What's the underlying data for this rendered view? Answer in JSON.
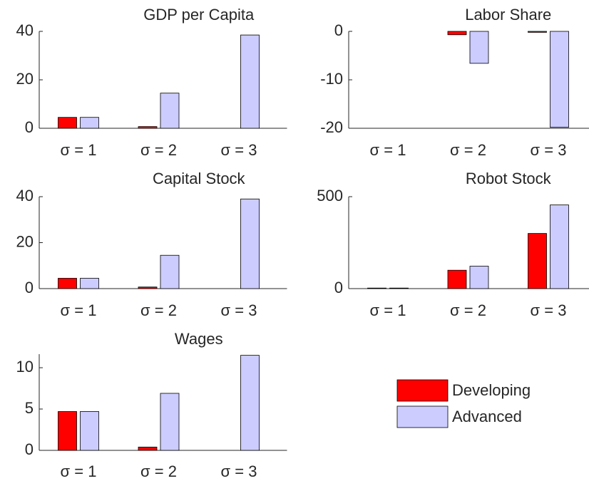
{
  "legend": {
    "series": [
      {
        "name": "Developing",
        "color": "#ff0000"
      },
      {
        "name": "Advanced",
        "color": "#ccccff"
      }
    ]
  },
  "chart_data": [
    {
      "type": "bar",
      "title": "GDP per Capita",
      "categories": [
        "σ = 1",
        "σ = 2",
        "σ = 3"
      ],
      "series": [
        {
          "values": [
            4.5,
            0.7,
            0
          ]
        },
        {
          "values": [
            4.5,
            14.5,
            38.5
          ]
        }
      ],
      "ylim": [
        0,
        40
      ],
      "yticks": [
        0,
        20,
        40
      ]
    },
    {
      "type": "bar",
      "title": "Labor Share",
      "categories": [
        "σ = 1",
        "σ = 2",
        "σ = 3"
      ],
      "series": [
        {
          "values": [
            0,
            -0.7,
            -0.2
          ]
        },
        {
          "values": [
            0,
            -6.6,
            -19.8
          ]
        }
      ],
      "ylim": [
        -20,
        0
      ],
      "yticks": [
        -20,
        -10,
        0
      ]
    },
    {
      "type": "bar",
      "title": "Capital Stock",
      "categories": [
        "σ = 1",
        "σ = 2",
        "σ = 3"
      ],
      "series": [
        {
          "values": [
            4.5,
            0.7,
            0
          ]
        },
        {
          "values": [
            4.5,
            14.5,
            39
          ]
        }
      ],
      "ylim": [
        0,
        40
      ],
      "yticks": [
        0,
        20,
        40
      ]
    },
    {
      "type": "bar",
      "title": "Robot Stock",
      "categories": [
        "σ = 1",
        "σ = 2",
        "σ = 3"
      ],
      "series": [
        {
          "values": [
            3,
            100,
            300
          ]
        },
        {
          "values": [
            3,
            122,
            455
          ]
        }
      ],
      "ylim": [
        0,
        500
      ],
      "yticks": [
        0,
        500
      ]
    },
    {
      "type": "bar",
      "title": "Wages",
      "categories": [
        "σ = 1",
        "σ = 2",
        "σ = 3"
      ],
      "series": [
        {
          "values": [
            4.7,
            0.4,
            0
          ]
        },
        {
          "values": [
            4.7,
            6.9,
            11.5
          ]
        }
      ],
      "ylim": [
        0,
        11.64
      ],
      "yticks": [
        0,
        5,
        10
      ]
    }
  ]
}
